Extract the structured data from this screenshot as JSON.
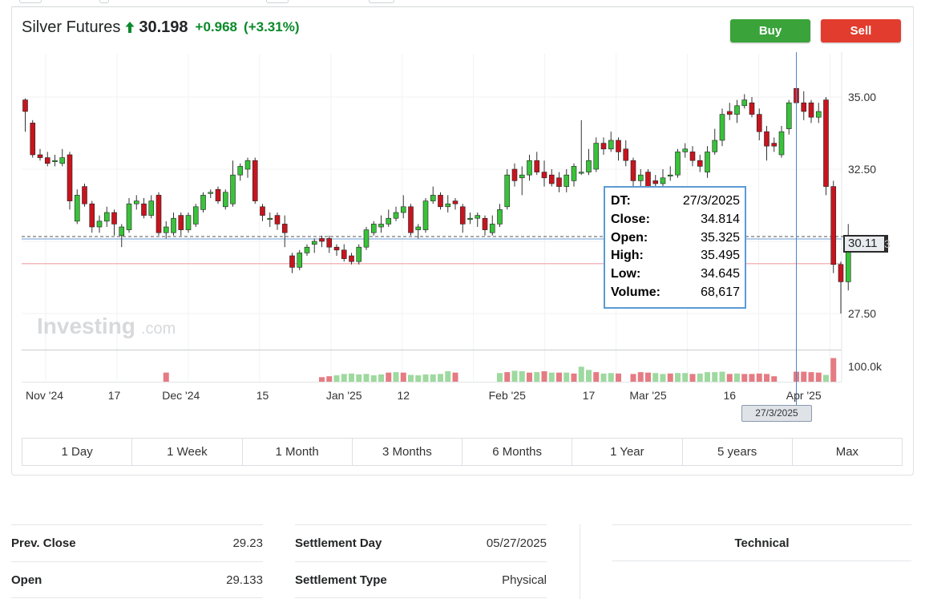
{
  "instrument": {
    "name": "Silver Futures",
    "price": "30.198",
    "change": "+0.968",
    "change_pct": "(+3.31%)",
    "direction_icon": "up-arrow-icon",
    "up_color": "#0a8a2a"
  },
  "actions": {
    "buy_label": "Buy",
    "sell_label": "Sell",
    "buy_color": "#3aa33a",
    "sell_color": "#e23c2e"
  },
  "chart_data": {
    "type": "candlestick",
    "watermark": "Investing.com",
    "y_ticks": [
      "35.00",
      "32.50",
      "27.50"
    ],
    "ylim": [
      26.25,
      36.5
    ],
    "volume_tick": "100.0k",
    "x_ticks": [
      {
        "label": "Nov '24",
        "i": 0
      },
      {
        "label": "17",
        "i": 12
      },
      {
        "label": "Dec '24",
        "i": 21
      },
      {
        "label": "15",
        "i": 32
      },
      {
        "label": "Jan '25",
        "i": 43
      },
      {
        "label": "12",
        "i": 51
      },
      {
        "label": "Feb '25",
        "i": 65
      },
      {
        "label": "17",
        "i": 76
      },
      {
        "label": "Mar '25",
        "i": 84
      },
      {
        "label": "16",
        "i": 95
      },
      {
        "label": "Apr '25",
        "i": 105
      }
    ],
    "last_price_tag": "30.11",
    "last_price": 30.11,
    "reference_line": 29.23,
    "crosshair_index": 104,
    "crosshair_date": "27/3/2025",
    "candles": [
      [
        34.9,
        34.5,
        34.95,
        33.8
      ],
      [
        34.1,
        33.0,
        34.2,
        32.9
      ],
      [
        33.0,
        32.9,
        33.2,
        32.8
      ],
      [
        32.9,
        32.7,
        33.1,
        32.6
      ],
      [
        32.8,
        32.8,
        33.0,
        32.6
      ],
      [
        32.7,
        32.9,
        33.2,
        32.6
      ],
      [
        33.0,
        31.4,
        33.1,
        31.1
      ],
      [
        30.7,
        31.6,
        31.8,
        30.6
      ],
      [
        31.9,
        31.3,
        32.0,
        31.2
      ],
      [
        31.3,
        30.5,
        31.4,
        30.3
      ],
      [
        30.5,
        30.7,
        30.9,
        30.3
      ],
      [
        30.7,
        31.0,
        31.2,
        30.5
      ],
      [
        31.0,
        30.6,
        31.1,
        30.2
      ],
      [
        30.2,
        30.5,
        30.6,
        29.8
      ],
      [
        30.4,
        31.3,
        31.5,
        30.3
      ],
      [
        31.3,
        31.4,
        31.6,
        31.1
      ],
      [
        31.3,
        30.9,
        31.5,
        30.8
      ],
      [
        30.9,
        31.4,
        31.6,
        30.8
      ],
      [
        31.6,
        30.3,
        31.7,
        30.2
      ],
      [
        30.3,
        30.5,
        30.7,
        30.1
      ],
      [
        30.3,
        30.8,
        31.0,
        30.2
      ],
      [
        30.9,
        30.4,
        31.0,
        30.2
      ],
      [
        30.4,
        30.9,
        31.0,
        30.3
      ],
      [
        30.6,
        31.2,
        31.3,
        30.5
      ],
      [
        31.1,
        31.6,
        31.7,
        31.0
      ],
      [
        31.7,
        31.7,
        31.8,
        31.5
      ],
      [
        31.8,
        31.4,
        31.9,
        31.3
      ],
      [
        31.2,
        31.7,
        31.8,
        31.1
      ],
      [
        31.3,
        32.3,
        32.8,
        31.2
      ],
      [
        32.3,
        32.6,
        32.7,
        32.1
      ],
      [
        32.5,
        32.8,
        32.9,
        32.2
      ],
      [
        32.8,
        31.4,
        32.9,
        31.3
      ],
      [
        31.2,
        30.9,
        31.3,
        30.7
      ],
      [
        30.8,
        30.8,
        31.0,
        30.5
      ],
      [
        30.9,
        30.6,
        31.0,
        30.4
      ],
      [
        30.6,
        30.3,
        30.9,
        29.8
      ],
      [
        29.5,
        29.1,
        29.6,
        28.9
      ],
      [
        29.1,
        29.6,
        29.7,
        29.0
      ],
      [
        29.6,
        29.8,
        29.9,
        29.5
      ],
      [
        29.9,
        30.0,
        30.1,
        29.6
      ],
      [
        30.1,
        30.0,
        30.2,
        29.8
      ],
      [
        30.1,
        29.8,
        30.2,
        29.6
      ],
      [
        29.8,
        29.7,
        29.9,
        29.5
      ],
      [
        29.7,
        29.4,
        29.9,
        29.3
      ],
      [
        29.5,
        29.3,
        29.6,
        29.2
      ],
      [
        29.3,
        29.8,
        29.9,
        29.2
      ],
      [
        29.8,
        30.4,
        30.5,
        29.7
      ],
      [
        30.3,
        30.6,
        30.7,
        30.2
      ],
      [
        30.5,
        30.6,
        30.9,
        30.3
      ],
      [
        30.6,
        30.8,
        31.1,
        30.5
      ],
      [
        30.8,
        31.0,
        31.2,
        30.7
      ],
      [
        31.0,
        31.2,
        31.6,
        30.8
      ],
      [
        31.2,
        30.3,
        31.3,
        30.2
      ],
      [
        30.4,
        30.5,
        30.6,
        30.1
      ],
      [
        30.4,
        31.4,
        31.5,
        30.3
      ],
      [
        31.4,
        31.6,
        31.9,
        31.3
      ],
      [
        31.6,
        31.2,
        31.7,
        31.1
      ],
      [
        31.2,
        31.3,
        31.6,
        31.0
      ],
      [
        31.4,
        31.3,
        31.5,
        31.1
      ],
      [
        31.2,
        30.6,
        31.3,
        30.3
      ],
      [
        30.8,
        30.8,
        31.0,
        30.6
      ],
      [
        30.8,
        30.9,
        31.0,
        30.5
      ],
      [
        30.8,
        30.4,
        30.9,
        30.2
      ],
      [
        30.3,
        30.6,
        30.9,
        30.2
      ],
      [
        30.6,
        31.1,
        31.3,
        30.5
      ],
      [
        31.2,
        32.3,
        32.5,
        31.1
      ],
      [
        32.5,
        32.1,
        32.7,
        31.9
      ],
      [
        32.2,
        32.3,
        32.6,
        31.6
      ],
      [
        32.3,
        32.8,
        33.0,
        32.1
      ],
      [
        32.8,
        32.4,
        33.1,
        32.3
      ],
      [
        32.4,
        32.2,
        32.8,
        31.9
      ],
      [
        32.3,
        32.0,
        32.5,
        31.9
      ],
      [
        32.2,
        31.9,
        32.4,
        31.7
      ],
      [
        31.9,
        32.3,
        32.5,
        31.7
      ],
      [
        32.1,
        32.6,
        32.7,
        31.9
      ],
      [
        32.4,
        32.4,
        34.2,
        32.3
      ],
      [
        32.4,
        32.8,
        33.2,
        32.3
      ],
      [
        32.5,
        33.4,
        33.6,
        32.4
      ],
      [
        33.4,
        33.2,
        33.6,
        33.0
      ],
      [
        33.2,
        33.5,
        33.8,
        33.1
      ],
      [
        33.5,
        33.1,
        33.6,
        32.8
      ],
      [
        33.2,
        32.8,
        33.5,
        32.6
      ],
      [
        32.8,
        32.1,
        32.9,
        31.5
      ],
      [
        32.1,
        32.3,
        32.5,
        31.7
      ],
      [
        32.4,
        31.8,
        32.5,
        31.5
      ],
      [
        32.1,
        32.0,
        32.3,
        31.8
      ],
      [
        32.0,
        32.2,
        32.5,
        31.8
      ],
      [
        32.3,
        32.3,
        32.6,
        32.1
      ],
      [
        32.3,
        33.1,
        33.2,
        32.2
      ],
      [
        33.1,
        33.2,
        33.4,
        32.9
      ],
      [
        33.1,
        32.8,
        33.3,
        32.6
      ],
      [
        32.8,
        32.6,
        33.0,
        32.4
      ],
      [
        32.4,
        33.1,
        33.3,
        32.2
      ],
      [
        33.1,
        33.5,
        33.9,
        33.0
      ],
      [
        33.5,
        34.4,
        34.6,
        33.3
      ],
      [
        34.5,
        34.4,
        34.8,
        34.2
      ],
      [
        34.4,
        34.7,
        34.9,
        34.1
      ],
      [
        34.7,
        34.9,
        35.1,
        34.6
      ],
      [
        34.8,
        34.4,
        35.0,
        34.3
      ],
      [
        34.4,
        33.8,
        34.6,
        33.5
      ],
      [
        33.8,
        33.3,
        34.0,
        32.8
      ],
      [
        33.4,
        33.3,
        33.6,
        33.1
      ],
      [
        33.0,
        33.8,
        34.0,
        32.9
      ],
      [
        33.9,
        34.8,
        34.9,
        33.7
      ],
      [
        35.3,
        34.8,
        35.495,
        34.645
      ],
      [
        34.8,
        34.5,
        35.2,
        34.2
      ],
      [
        34.8,
        34.3,
        34.9,
        34.1
      ],
      [
        34.3,
        34.5,
        34.8,
        34.1
      ],
      [
        34.9,
        31.9,
        35.0,
        31.6
      ],
      [
        31.9,
        29.2,
        32.1,
        28.9
      ],
      [
        29.2,
        28.6,
        29.3,
        27.5
      ],
      [
        28.6,
        30.2,
        30.6,
        28.3
      ]
    ],
    "volume": [
      [
        0,
        0
      ],
      [
        0,
        0
      ],
      [
        0,
        0
      ],
      [
        0,
        0
      ],
      [
        0,
        0
      ],
      [
        0,
        0
      ],
      [
        0,
        0
      ],
      [
        0,
        0
      ],
      [
        0,
        0
      ],
      [
        0,
        0
      ],
      [
        0,
        0
      ],
      [
        0,
        0
      ],
      [
        0,
        0
      ],
      [
        0,
        0
      ],
      [
        0,
        0
      ],
      [
        0,
        0
      ],
      [
        0,
        0
      ],
      [
        0,
        0
      ],
      [
        0,
        0
      ],
      [
        20,
        1
      ],
      [
        0,
        0
      ],
      [
        0,
        0
      ],
      [
        0,
        0
      ],
      [
        0,
        0
      ],
      [
        0,
        0
      ],
      [
        0,
        0
      ],
      [
        0,
        0
      ],
      [
        0,
        0
      ],
      [
        0,
        0
      ],
      [
        0,
        0
      ],
      [
        0,
        0
      ],
      [
        0,
        0
      ],
      [
        0,
        0
      ],
      [
        0,
        0
      ],
      [
        0,
        0
      ],
      [
        0,
        0
      ],
      [
        0,
        0
      ],
      [
        0,
        0
      ],
      [
        0,
        0
      ],
      [
        0,
        0
      ],
      [
        10,
        1
      ],
      [
        12,
        1
      ],
      [
        14,
        0
      ],
      [
        17,
        0
      ],
      [
        18,
        0
      ],
      [
        16,
        0
      ],
      [
        17,
        0
      ],
      [
        14,
        0
      ],
      [
        16,
        0
      ],
      [
        20,
        1
      ],
      [
        21,
        0
      ],
      [
        20,
        1
      ],
      [
        15,
        0
      ],
      [
        14,
        0
      ],
      [
        16,
        0
      ],
      [
        16,
        0
      ],
      [
        17,
        0
      ],
      [
        23,
        0
      ],
      [
        20,
        1
      ],
      [
        0,
        0
      ],
      [
        0,
        0
      ],
      [
        0,
        0
      ],
      [
        0,
        0
      ],
      [
        0,
        0
      ],
      [
        19,
        0
      ],
      [
        21,
        1
      ],
      [
        24,
        0
      ],
      [
        23,
        0
      ],
      [
        20,
        1
      ],
      [
        21,
        0
      ],
      [
        23,
        1
      ],
      [
        20,
        0
      ],
      [
        20,
        1
      ],
      [
        20,
        0
      ],
      [
        18,
        1
      ],
      [
        33,
        0
      ],
      [
        26,
        0
      ],
      [
        21,
        1
      ],
      [
        18,
        0
      ],
      [
        19,
        0
      ],
      [
        18,
        1
      ],
      [
        0,
        0
      ],
      [
        17,
        1
      ],
      [
        21,
        1
      ],
      [
        20,
        1
      ],
      [
        19,
        0
      ],
      [
        17,
        0
      ],
      [
        18,
        1
      ],
      [
        19,
        0
      ],
      [
        19,
        0
      ],
      [
        17,
        1
      ],
      [
        18,
        0
      ],
      [
        21,
        0
      ],
      [
        21,
        0
      ],
      [
        22,
        0
      ],
      [
        17,
        1
      ],
      [
        18,
        0
      ],
      [
        17,
        1
      ],
      [
        17,
        1
      ],
      [
        18,
        1
      ],
      [
        17,
        1
      ],
      [
        12,
        1
      ],
      [
        0,
        0
      ],
      [
        0,
        0
      ],
      [
        22,
        1
      ],
      [
        22,
        1
      ],
      [
        21,
        1
      ],
      [
        20,
        1
      ],
      [
        15,
        0
      ],
      [
        52,
        1
      ],
      [
        0,
        0
      ],
      [
        0,
        0
      ],
      [
        0,
        0
      ]
    ],
    "up_color": "#39c23a",
    "down_color": "#c8141e"
  },
  "tooltip": {
    "rows": [
      {
        "label": "DT:",
        "value": "27/3/2025"
      },
      {
        "label": "Close:",
        "value": "34.814"
      },
      {
        "label": "Open:",
        "value": "35.325"
      },
      {
        "label": "High:",
        "value": "35.495"
      },
      {
        "label": "Low:",
        "value": "34.645"
      },
      {
        "label": "Volume:",
        "value": "68,617"
      }
    ]
  },
  "ranges": [
    "1 Day",
    "1 Week",
    "1 Month",
    "3 Months",
    "6 Months",
    "1 Year",
    "5 years",
    "Max"
  ],
  "stats": {
    "left": [
      {
        "label": "Prev. Close",
        "value": "29.23"
      },
      {
        "label": "Open",
        "value": "29.133"
      }
    ],
    "middle": [
      {
        "label": "Settlement Day",
        "value": "05/27/2025"
      },
      {
        "label": "Settlement Type",
        "value": "Physical"
      }
    ],
    "technical_label": "Technical"
  }
}
